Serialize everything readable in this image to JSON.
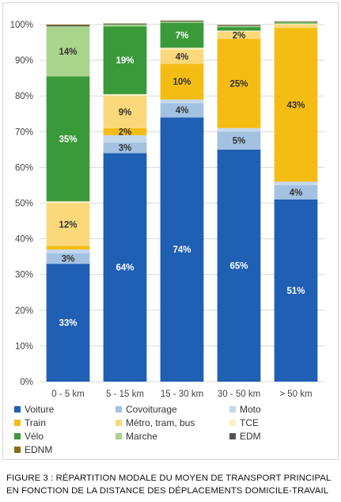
{
  "caption": {
    "line1": "FIGURE 3 : RÉPARTITION MODALE DU MOYEN DE TRANSPORT PRINCIPAL",
    "line2": "EN FONCTION DE LA DISTANCE DES DÉPLACEMENTS DOMICILE-TRAVAIL"
  },
  "chart_data": {
    "type": "bar",
    "stacked": true,
    "categories": [
      "0 - 5 km",
      "5 - 15 km",
      "15 - 30 km",
      "30 - 50 km",
      "> 50 km"
    ],
    "ylim": [
      0,
      100
    ],
    "y_tick_labels": [
      "0%",
      "10%",
      "20%",
      "30%",
      "40%",
      "50%",
      "60%",
      "70%",
      "80%",
      "90%",
      "100%"
    ],
    "grid": true,
    "legend_position": "bottom",
    "series": [
      {
        "name": "Voiture",
        "color": "#1f5fb4",
        "values": [
          33,
          64,
          74,
          65,
          51
        ],
        "labels": [
          "33%",
          "64%",
          "74%",
          "65%",
          "51%"
        ],
        "label_color": "#ffffff"
      },
      {
        "name": "Covoiturage",
        "color": "#a3c2e2",
        "values": [
          3,
          3,
          4,
          5,
          4
        ],
        "labels": [
          "3%",
          "3%",
          "4%",
          "5%",
          "4%"
        ],
        "label_color": "#333333"
      },
      {
        "name": "Moto",
        "color": "#c4d8ec",
        "values": [
          1,
          2,
          1,
          1,
          1
        ],
        "labels": [
          "",
          "",
          "",
          "",
          ""
        ],
        "label_color": "#333333"
      },
      {
        "name": "Train",
        "color": "#f5bd14",
        "values": [
          1,
          2,
          10,
          25,
          43
        ],
        "labels": [
          "",
          "2%",
          "10%",
          "25%",
          "43%"
        ],
        "label_color": "#333333"
      },
      {
        "name": "Métro, tram, bus",
        "color": "#fbd97a",
        "values": [
          12,
          9,
          4,
          2,
          1
        ],
        "labels": [
          "12%",
          "9%",
          "4%",
          "2%",
          ""
        ],
        "label_color": "#333333"
      },
      {
        "name": "TCE",
        "color": "#fdf0c4",
        "values": [
          0.5,
          0.5,
          0.5,
          0.3,
          0.3
        ],
        "labels": [
          "",
          "",
          "",
          "",
          ""
        ],
        "label_color": "#333333"
      },
      {
        "name": "Vélo",
        "color": "#3a9a3a",
        "values": [
          35,
          19,
          7,
          1,
          0.3
        ],
        "labels": [
          "35%",
          "19%",
          "7%",
          "",
          ""
        ],
        "label_color": "#ffffff"
      },
      {
        "name": "Marche",
        "color": "#a8d48c",
        "values": [
          14,
          0.5,
          0.3,
          0.3,
          0.1
        ],
        "labels": [
          "14%",
          "",
          "",
          "",
          ""
        ],
        "label_color": "#333333"
      },
      {
        "name": "EDM",
        "color": "#555555",
        "values": [
          0.3,
          0.2,
          0.2,
          0.2,
          0.1
        ],
        "labels": [
          "",
          "",
          "",
          "",
          ""
        ],
        "label_color": "#333333"
      },
      {
        "name": "EDNM",
        "color": "#8b6b10",
        "values": [
          0.2,
          0.1,
          0.1,
          0.1,
          0.1
        ],
        "labels": [
          "",
          "",
          "",
          "",
          ""
        ],
        "label_color": "#333333"
      }
    ]
  }
}
